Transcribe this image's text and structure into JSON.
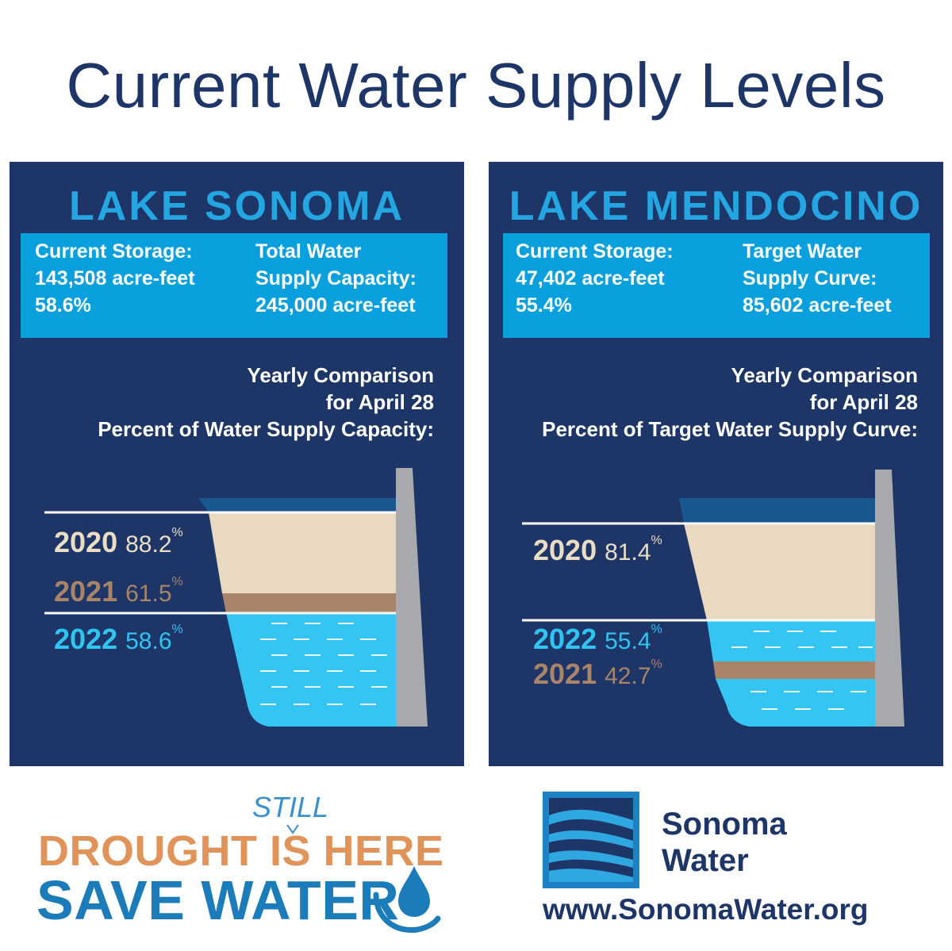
{
  "title": "Current Water Supply Levels",
  "sonoma": {
    "name": "LAKE SONOMA",
    "storage_label": "Current Storage:",
    "storage_value": "143,508 acre-feet",
    "storage_pct": "58.6%",
    "capacity_label_1": "Total Water",
    "capacity_label_2": "Supply Capacity:",
    "capacity_value": "245,000 acre-feet",
    "compare_1": "Yearly Comparison",
    "compare_2": "for April 28",
    "compare_3": "Percent of Water  Supply Capacity:",
    "y2020": "2020",
    "p2020": "88.2",
    "v2020": 88.2,
    "y2021": "2021",
    "p2021": "61.5",
    "v2021": 61.5,
    "y2022": "2022",
    "p2022": "58.6",
    "v2022": 58.6,
    "pct_sign": "%"
  },
  "mendocino": {
    "name": "LAKE MENDOCINO",
    "storage_label": "Current Storage:",
    "storage_value": "47,402 acre-feet",
    "storage_pct": "55.4%",
    "target_label_1": "Target Water",
    "target_label_2": "Supply Curve:",
    "target_value": "85,602 acre-feet",
    "compare_1": "Yearly Comparison",
    "compare_2": "for April 28",
    "compare_3": "Percent of Target Water Supply Curve:",
    "y2020": "2020",
    "p2020": "81.4",
    "v2020": 81.4,
    "y2022": "2022",
    "p2022": "55.4",
    "v2022": 55.4,
    "y2021": "2021",
    "p2021": "42.7",
    "v2021": 42.7,
    "pct_sign": "%"
  },
  "footer": {
    "drought": "DROUGHT IS HERE",
    "still": "STILL",
    "save": "SAVE WATER",
    "logo_line1": "Sonoma",
    "logo_line2": "Water",
    "url": "www.SonomaWater.org"
  },
  "colors": {
    "navy": "#1e3567",
    "bright_blue": "#24a6e2",
    "info_blue": "#0a9fdd",
    "water": "#35c5f2",
    "sand": "#e8d9c0",
    "brown": "#a98468",
    "dam_gray": "#a7a9ac",
    "orange": "#e0945a"
  },
  "icons": [
    "water-drop-icon",
    "sonoma-water-logo-icon",
    "dam-wall-icon"
  ]
}
